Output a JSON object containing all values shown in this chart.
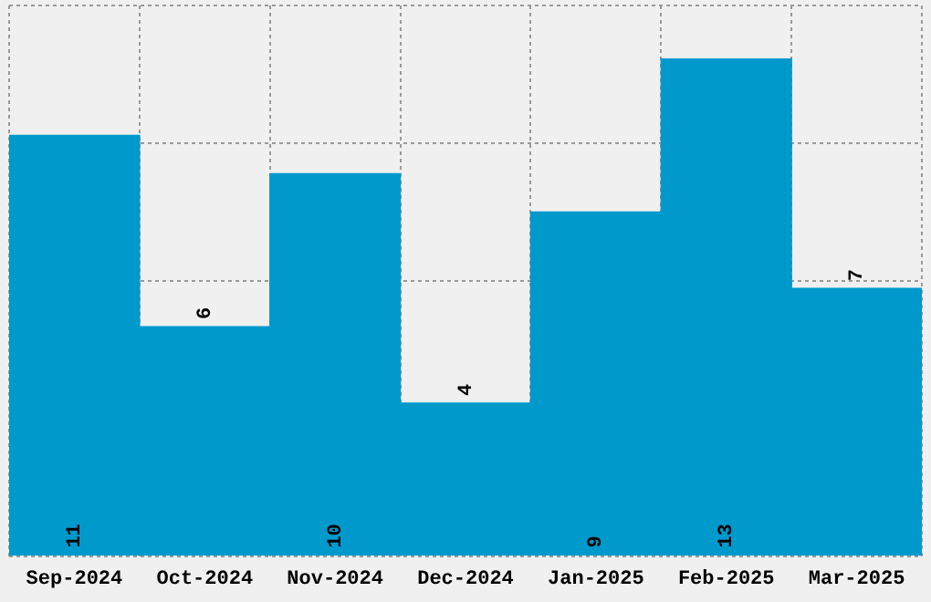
{
  "chart_data": {
    "type": "bar",
    "categories": [
      "Sep-2024",
      "Oct-2024",
      "Nov-2024",
      "Dec-2024",
      "Jan-2025",
      "Feb-2025",
      "Mar-2025"
    ],
    "values": [
      11,
      6,
      10,
      4,
      9,
      13,
      7
    ],
    "color": "#0099cc",
    "ylim": [
      0,
      14.4
    ],
    "grid": true,
    "legend": false,
    "data_labels": true,
    "tick_labels": "x"
  }
}
